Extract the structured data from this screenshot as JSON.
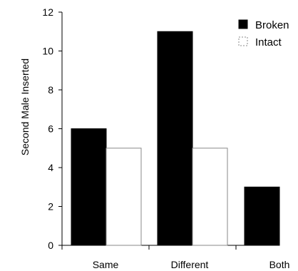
{
  "chart_data": {
    "type": "bar",
    "title": "",
    "xlabel": "",
    "ylabel": "Second Male Inserted",
    "categories": [
      "Same",
      "Different",
      "Both"
    ],
    "series": [
      {
        "name": "Broken",
        "values": [
          6,
          11,
          3
        ],
        "color": "#000000",
        "fill": "solid"
      },
      {
        "name": "Intact",
        "values": [
          5,
          5,
          null
        ],
        "color": "#ffffff",
        "fill": "outline"
      }
    ],
    "ylim": [
      0,
      12
    ],
    "yticks": [
      0,
      2,
      4,
      6,
      8,
      10,
      12
    ],
    "grid": false,
    "legend_position": "top-right"
  }
}
